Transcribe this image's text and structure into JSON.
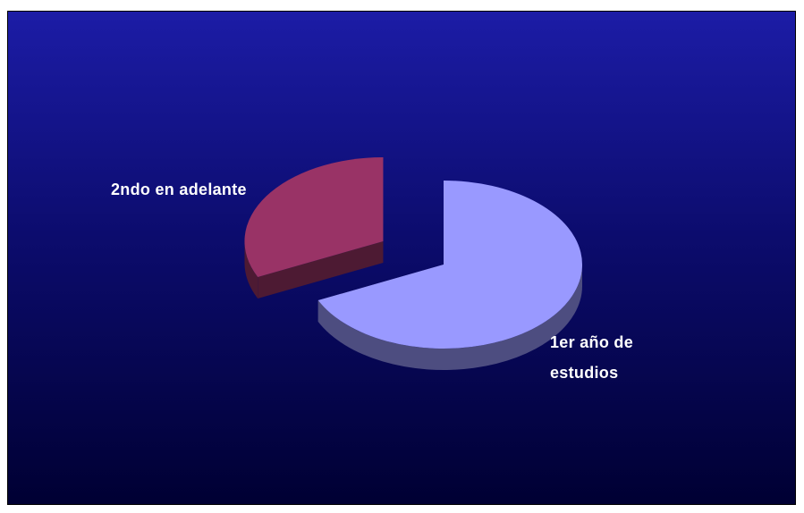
{
  "chart_data": {
    "type": "pie",
    "categories": [
      "1er año de estudios",
      "2ndo en adelante"
    ],
    "values": [
      68,
      32
    ],
    "colors": [
      "#9999ff",
      "#993366"
    ]
  }
}
